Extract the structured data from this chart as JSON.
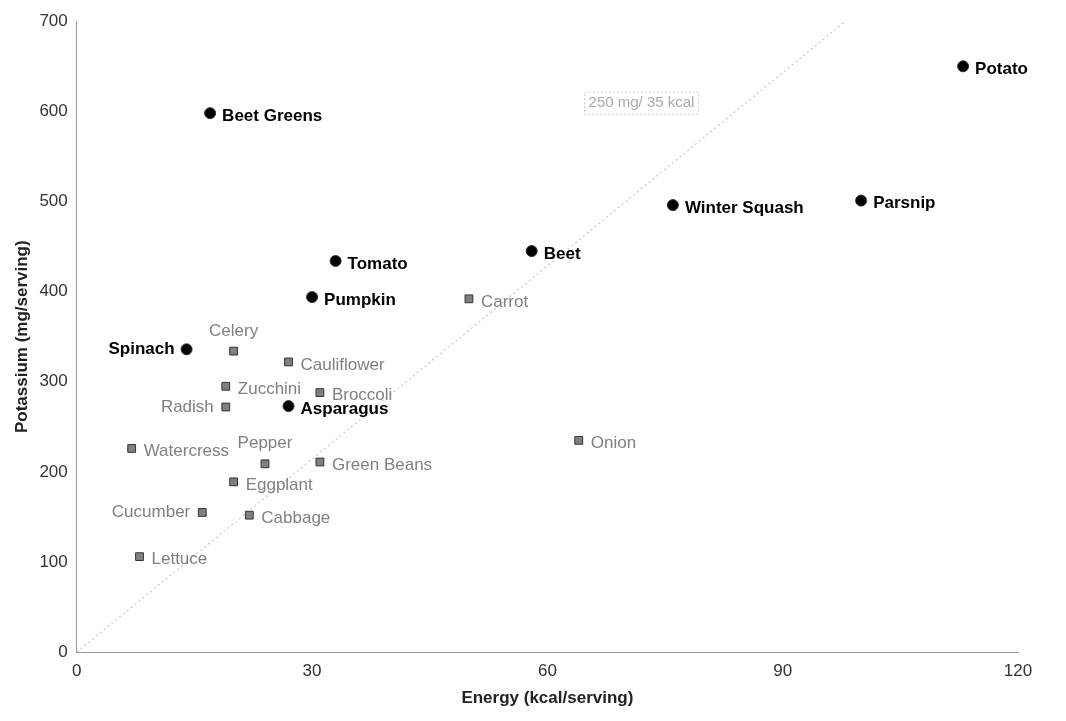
{
  "chart_data": {
    "type": "scatter",
    "xlabel": "Energy (kcal/serving)",
    "ylabel": "Potassium (mg/serving)",
    "xlim": [
      0,
      120
    ],
    "ylim": [
      0,
      700
    ],
    "xticks": [
      0,
      30,
      60,
      90,
      120
    ],
    "yticks": [
      0,
      100,
      200,
      300,
      400,
      500,
      600,
      700
    ],
    "grid": false,
    "legend": false,
    "series": [
      {
        "marker": "circle",
        "color": "#000000",
        "x": [
          17,
          113,
          76,
          100,
          58,
          33,
          30,
          14,
          27
        ],
        "values": [
          598,
          650,
          496,
          501,
          445,
          434,
          394,
          336,
          273
        ]
      },
      {
        "marker": "square",
        "color": "#808080",
        "x": [
          50,
          20,
          27,
          31,
          19,
          19,
          7,
          64,
          24,
          31,
          20,
          16,
          22,
          8
        ],
        "values": [
          392,
          334,
          322,
          288,
          295,
          272,
          226,
          235,
          209,
          211,
          189,
          155,
          152,
          106
        ]
      },
      {
        "type": "line",
        "line_style": "dotted",
        "marker": "none",
        "color": "#c8c8c8",
        "x": [
          0,
          98
        ],
        "values": [
          0,
          700
        ]
      }
    ],
    "annotations": [
      {
        "text": "Beet Greens",
        "x": 17,
        "y": 598
      },
      {
        "text": "Potato",
        "x": 113,
        "y": 650
      },
      {
        "text": "Winter Squash",
        "x": 76,
        "y": 496
      },
      {
        "text": "Parsnip",
        "x": 100,
        "y": 501
      },
      {
        "text": "Beet",
        "x": 58,
        "y": 445
      },
      {
        "text": "Tomato",
        "x": 33,
        "y": 434
      },
      {
        "text": "Pumpkin",
        "x": 30,
        "y": 394
      },
      {
        "text": "Spinach",
        "x": 14,
        "y": 336
      },
      {
        "text": "Asparagus",
        "x": 27,
        "y": 273
      },
      {
        "text": "Carrot",
        "x": 50,
        "y": 392
      },
      {
        "text": "Celery",
        "x": 20,
        "y": 334
      },
      {
        "text": "Cauliflower",
        "x": 27,
        "y": 322
      },
      {
        "text": "Broccoli",
        "x": 31,
        "y": 288
      },
      {
        "text": "Zucchini",
        "x": 19,
        "y": 295
      },
      {
        "text": "Radish",
        "x": 19,
        "y": 272
      },
      {
        "text": "Watercress",
        "x": 7,
        "y": 226
      },
      {
        "text": "Onion",
        "x": 64,
        "y": 235
      },
      {
        "text": "Pepper",
        "x": 24,
        "y": 209
      },
      {
        "text": "Green Beans",
        "x": 31,
        "y": 211
      },
      {
        "text": "Eggplant",
        "x": 20,
        "y": 189
      },
      {
        "text": "Cucumber",
        "x": 16,
        "y": 155
      },
      {
        "text": "Cabbage",
        "x": 22,
        "y": 152
      },
      {
        "text": "Lettuce",
        "x": 8,
        "y": 106
      },
      "250 mg/ 35 kcal"
    ]
  }
}
